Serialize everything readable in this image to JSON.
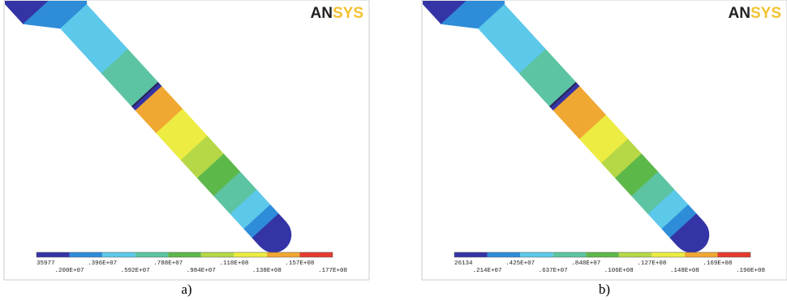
{
  "panels": [
    {
      "logo": [
        "AN",
        "SYS"
      ],
      "caption": "a)",
      "legend": [
        "35977",
        ".200E+07",
        ".396E+07",
        ".592E+07",
        ".788E+07",
        ".984E+07",
        ".118E+08",
        ".138E+08",
        ".157E+08",
        ".177E+08"
      ]
    },
    {
      "logo": [
        "AN",
        "SYS"
      ],
      "caption": "b)",
      "legend": [
        "26134",
        ".214E+07",
        ".425E+07",
        ".637E+07",
        ".848E+07",
        ".106E+08",
        ".127E+08",
        ".148E+08",
        ".169E+08",
        ".190E+08"
      ]
    }
  ]
}
